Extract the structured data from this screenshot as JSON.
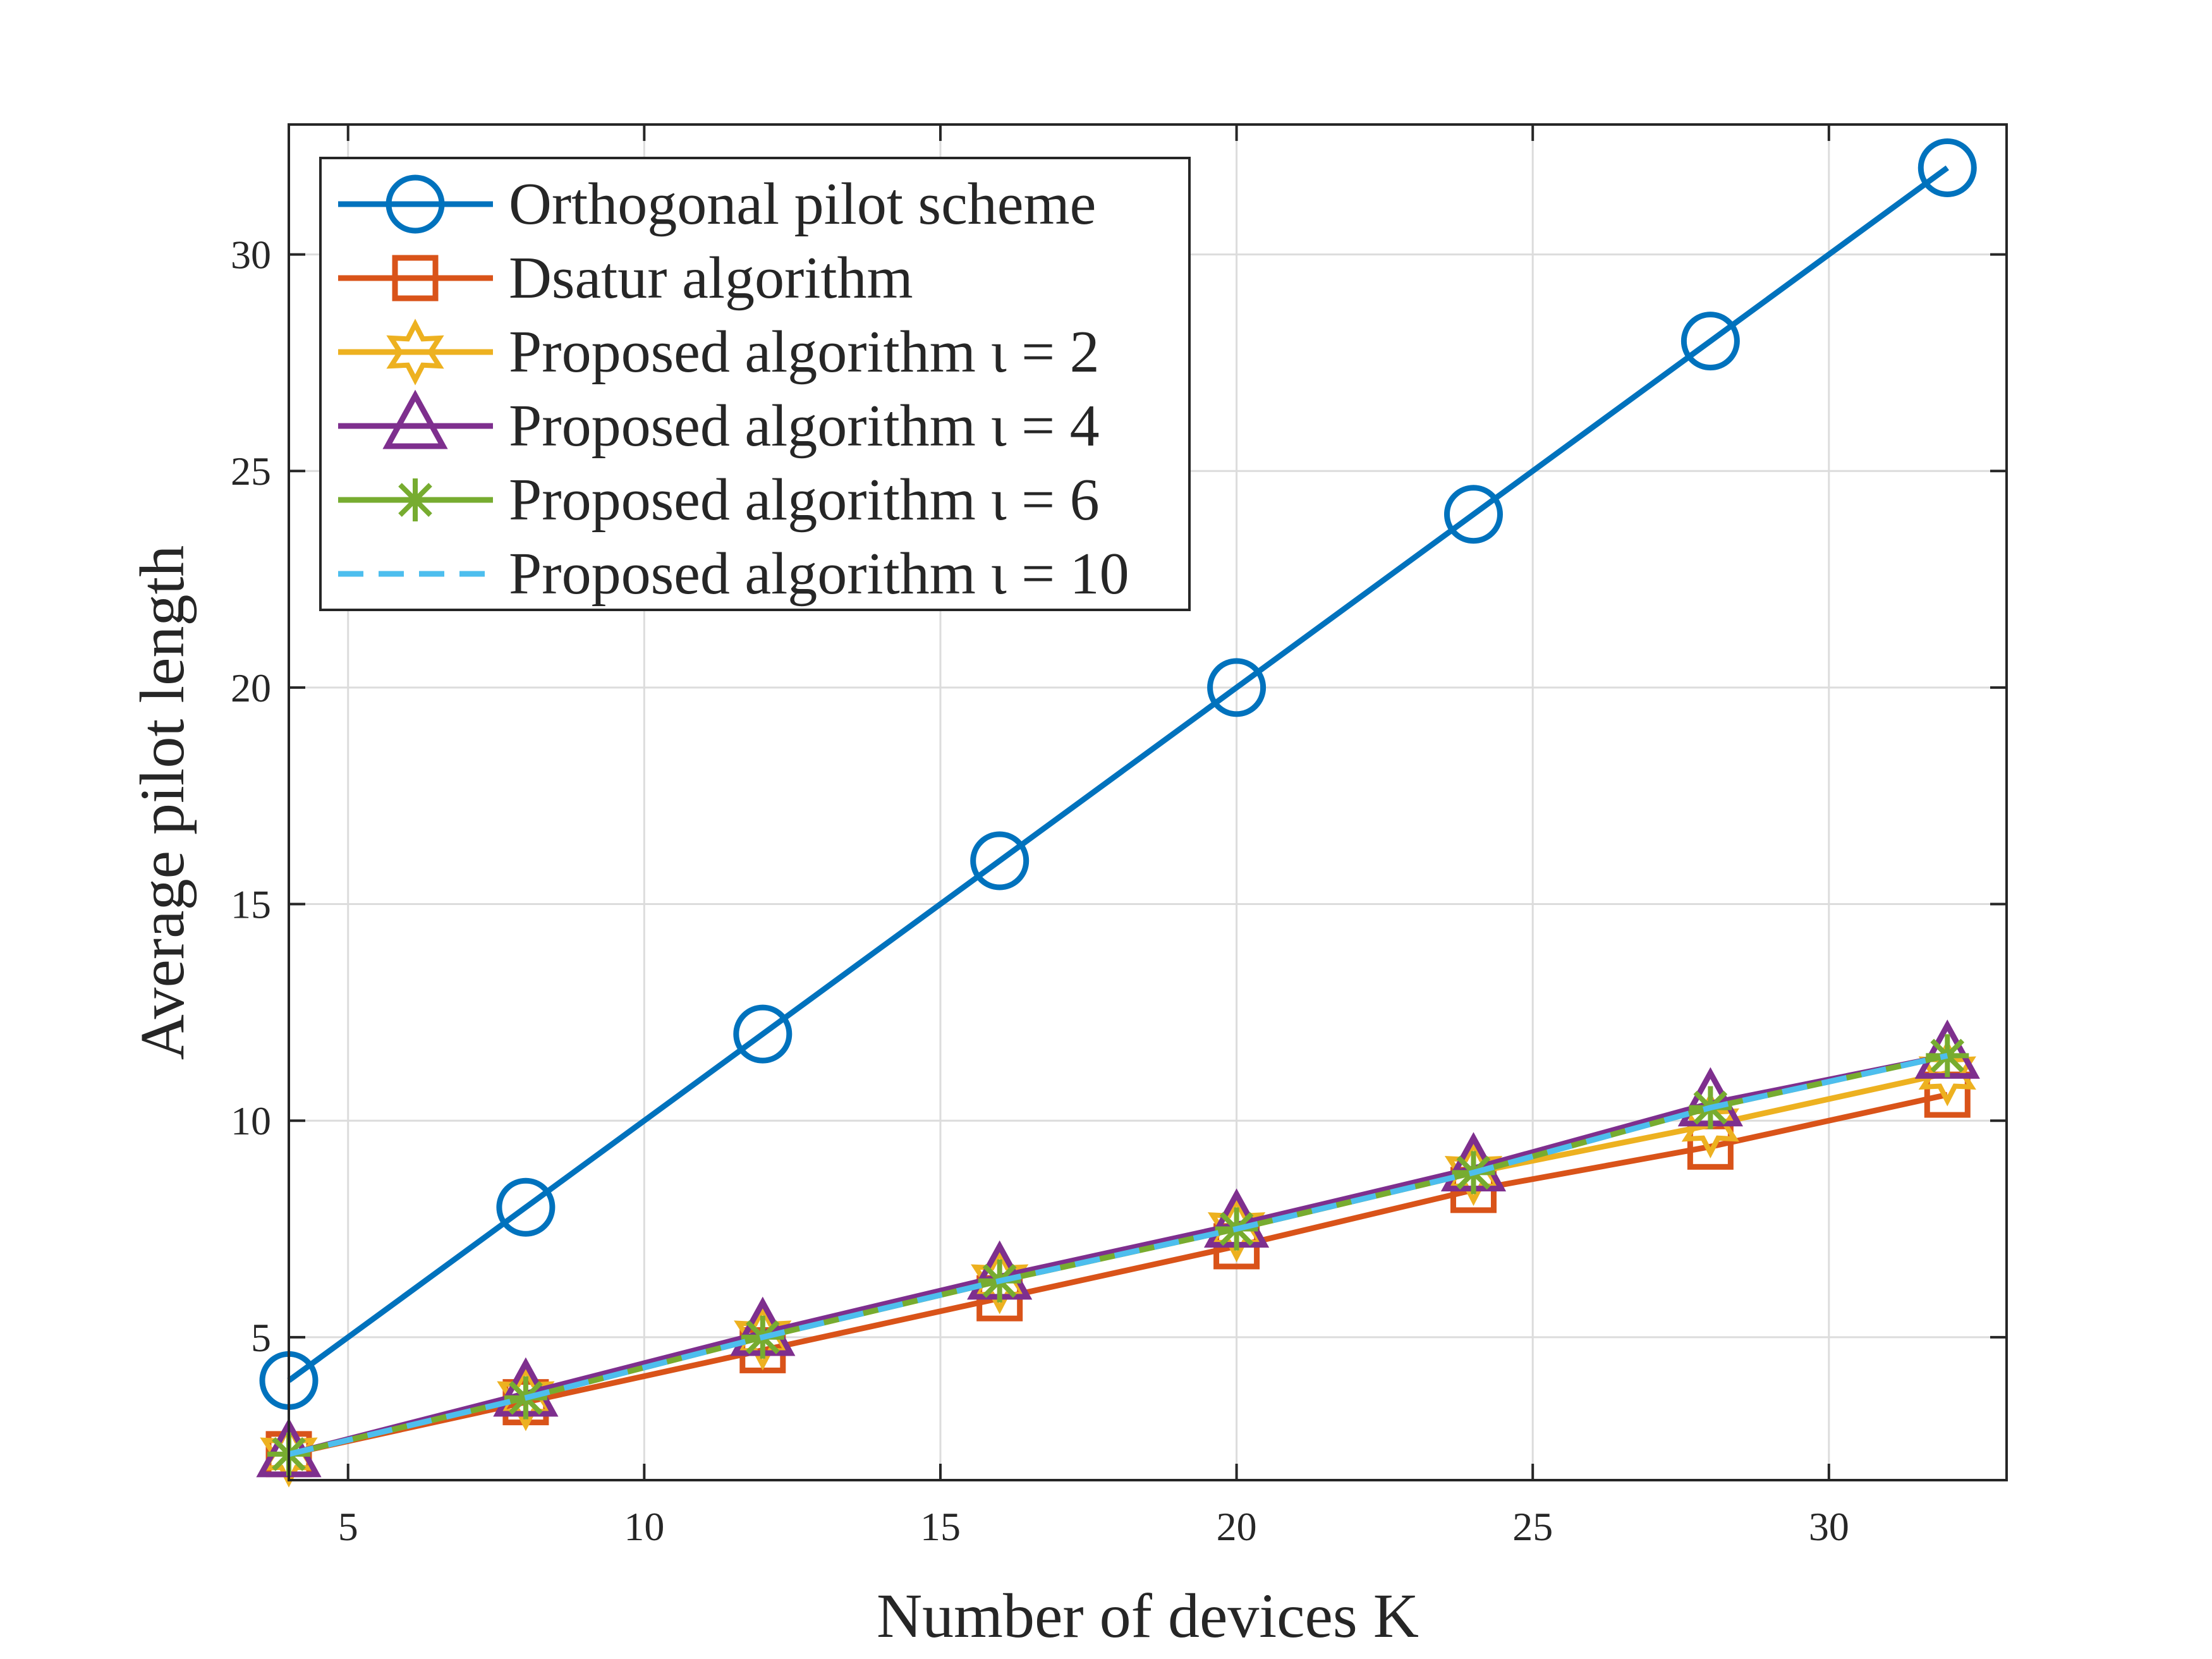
{
  "chart_data": {
    "type": "line",
    "title": "",
    "xlabel": "Number of devices K",
    "ylabel": "Average pilot length",
    "xlim": [
      4,
      33
    ],
    "ylim": [
      1.7,
      33
    ],
    "xticks": [
      5,
      10,
      15,
      20,
      25,
      30
    ],
    "yticks": [
      5,
      10,
      15,
      20,
      25,
      30
    ],
    "grid": true,
    "legend_position": "top-left",
    "x": [
      4,
      8,
      12,
      16,
      20,
      24,
      28,
      32
    ],
    "series": [
      {
        "name": "Orthogonal pilot scheme",
        "values": [
          4,
          8,
          12,
          16,
          20,
          24,
          28,
          32
        ],
        "color": "#0072BD",
        "marker": "circle",
        "dash": "solid"
      },
      {
        "name": "Dsatur algorithm",
        "values": [
          2.3,
          3.5,
          4.7,
          5.9,
          7.1,
          8.4,
          9.4,
          10.6
        ],
        "color": "#D95319",
        "marker": "square",
        "dash": "solid"
      },
      {
        "name": "Proposed algorithm ι = 2",
        "values": [
          2.3,
          3.6,
          5.0,
          6.3,
          7.5,
          8.8,
          9.9,
          11.1
        ],
        "color": "#EDB120",
        "marker": "hexagram",
        "dash": "solid"
      },
      {
        "name": "Proposed algorithm ι = 4",
        "values": [
          2.3,
          3.7,
          5.1,
          6.4,
          7.6,
          8.9,
          10.4,
          11.5
        ],
        "color": "#7E2F8E",
        "marker": "triangle",
        "dash": "solid"
      },
      {
        "name": "Proposed algorithm ι = 6",
        "values": [
          2.3,
          3.6,
          5.0,
          6.3,
          7.5,
          8.8,
          10.3,
          11.5
        ],
        "color": "#77AC30",
        "marker": "asterisk",
        "dash": "solid"
      },
      {
        "name": "Proposed algorithm ι = 10",
        "values": [
          2.3,
          3.6,
          5.0,
          6.3,
          7.5,
          8.8,
          10.3,
          11.5
        ],
        "color": "#4DBEEE",
        "marker": "none",
        "dash": "dashed"
      }
    ]
  }
}
